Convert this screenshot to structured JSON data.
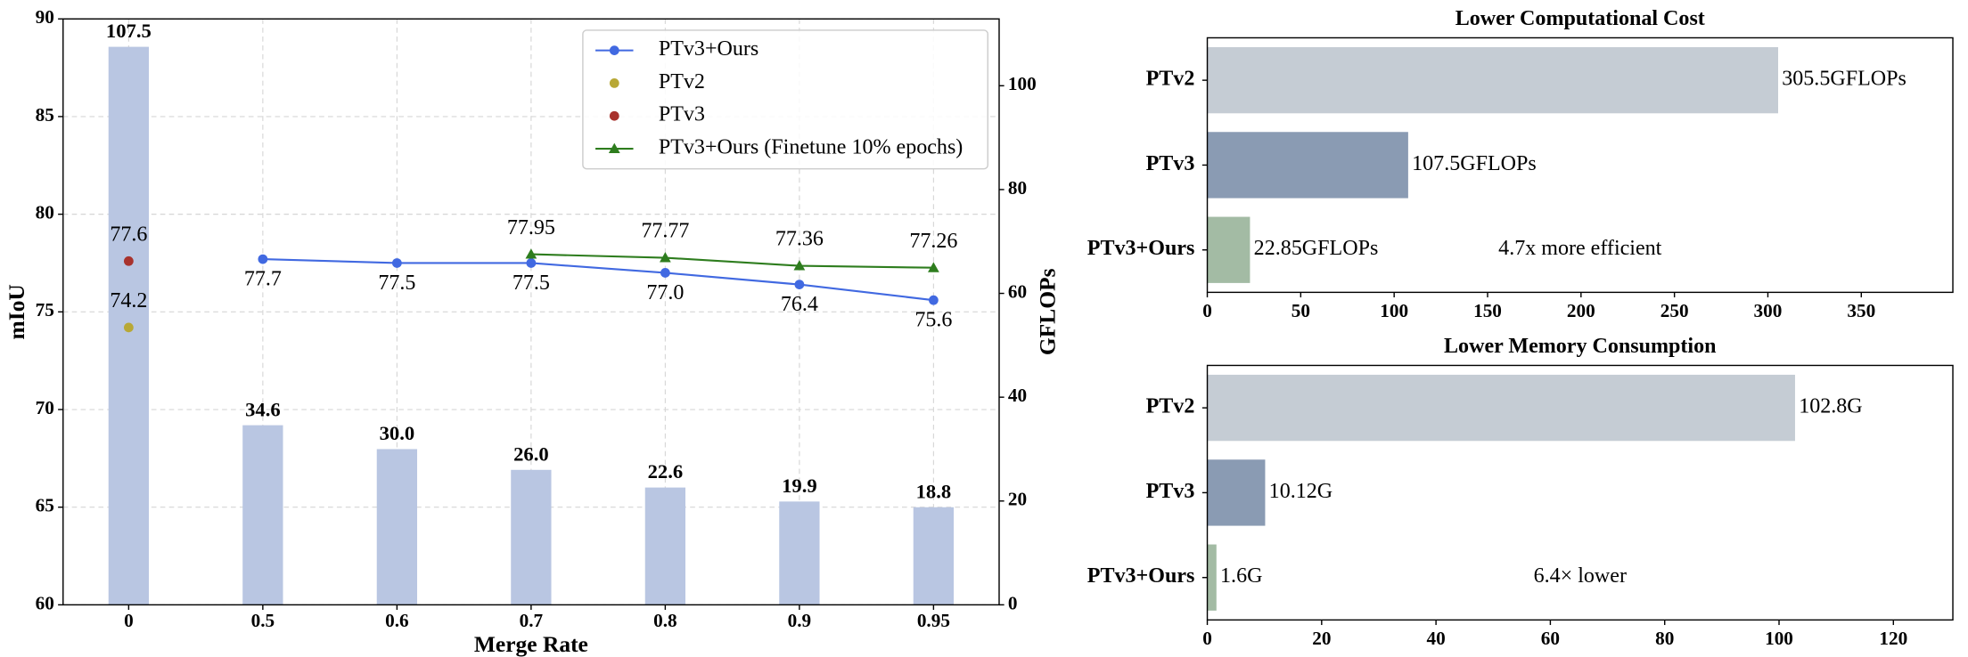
{
  "chart_data": [
    {
      "type": "combo",
      "x_label": "Merge Rate",
      "y_label": "mIoU",
      "y2_label": "GFLOPs",
      "categories": [
        "0",
        "0.5",
        "0.6",
        "0.7",
        "0.8",
        "0.9",
        "0.95"
      ],
      "ylim": [
        60,
        90
      ],
      "yticks": [
        60,
        65,
        70,
        75,
        80,
        85,
        90
      ],
      "y2lim": [
        0,
        112.875
      ],
      "y2ticks": [
        0,
        20,
        40,
        60,
        80,
        100
      ],
      "grid": true,
      "legend": "upper right",
      "bars": {
        "axis": "y2",
        "color": "#b9c6e2",
        "label_color": "#5b8bd8",
        "values": [
          107.5,
          34.6,
          30.0,
          26.0,
          22.6,
          19.9,
          18.8
        ],
        "value_labels": [
          "107.5",
          "34.6",
          "30.0",
          "26.0",
          "22.6",
          "19.9",
          "18.8"
        ]
      },
      "series": [
        {
          "name": "PTv3+Ours",
          "color": "#4169e1",
          "label_color": "#0000cd",
          "line": true,
          "marker": "circle",
          "label_position": "below",
          "values": [
            null,
            77.7,
            77.5,
            77.5,
            77.0,
            76.4,
            75.6
          ],
          "value_labels": [
            null,
            "77.7",
            "77.5",
            "77.5",
            "77.0",
            "76.4",
            "75.6"
          ]
        },
        {
          "name": "PTv2",
          "color": "#b8a836",
          "label_color": "#b8a836",
          "line": false,
          "marker": "circle",
          "label_position": "above",
          "values": [
            74.2,
            null,
            null,
            null,
            null,
            null,
            null
          ]
        },
        {
          "name": "PTv3",
          "color": "#a8322d",
          "label_color": "#a8322d",
          "line": false,
          "marker": "circle",
          "label_position": "above",
          "values": [
            77.6,
            null,
            null,
            null,
            null,
            null,
            null
          ]
        },
        {
          "name": "PTv3+Ours (Finetune 10% epochs)",
          "color": "#2e7d1e",
          "label_color": "#2e7d1e",
          "line": true,
          "marker": "triangle",
          "label_position": "above",
          "values": [
            null,
            null,
            null,
            77.95,
            77.77,
            77.36,
            77.26
          ]
        }
      ]
    },
    {
      "type": "barh",
      "title": "Lower Computational Cost",
      "categories": [
        "PTv2",
        "PTv3",
        "PTv3+Ours"
      ],
      "values": [
        305.5,
        107.5,
        22.85
      ],
      "value_labels": [
        "305.5GFLOPs",
        "107.5GFLOPs",
        "22.85GFLOPs"
      ],
      "colors": [
        "#c5ccd4",
        "#8a9bb3",
        "#a3bba4"
      ],
      "xlim": [
        0,
        399
      ],
      "xticks": [
        0,
        50,
        100,
        150,
        200,
        250,
        300,
        350
      ],
      "annotation": "4.7x more efficient"
    },
    {
      "type": "barh",
      "title": "Lower Memory Consumption",
      "categories": [
        "PTv2",
        "PTv3",
        "PTv3+Ours"
      ],
      "values": [
        102.8,
        10.12,
        1.6
      ],
      "value_labels": [
        "102.8G",
        "10.12G",
        "1.6G"
      ],
      "colors": [
        "#c5ccd4",
        "#8a9bb3",
        "#a3bba4"
      ],
      "xlim": [
        0,
        130.4
      ],
      "xticks": [
        0,
        20,
        40,
        60,
        80,
        100,
        120
      ],
      "annotation": "6.4× lower"
    }
  ]
}
